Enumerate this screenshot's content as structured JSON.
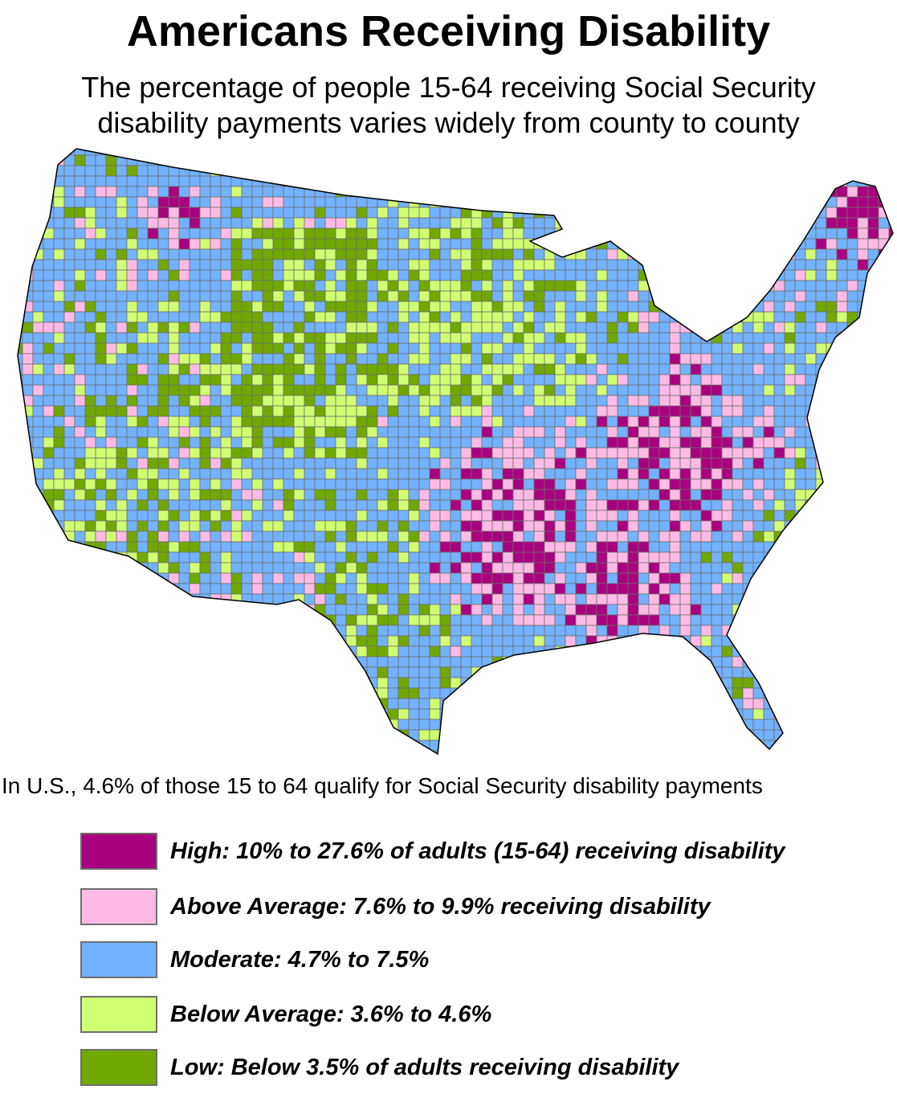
{
  "title": "Americans Receiving Disability",
  "subtitle_line1": "The percentage of people 15-64 receiving Social Security",
  "subtitle_line2": "disability payments varies widely from county to county",
  "note": "In U.S., 4.6% of those 15 to 64 qualify for Social Security disability payments",
  "legend": [
    {
      "label": "High: 10% to 27.6% of adults (15-64) receiving disability",
      "color": "#A8007F"
    },
    {
      "label": "Above Average: 7.6% to 9.9% receiving disability",
      "color": "#FFBBE5"
    },
    {
      "label": "Moderate: 4.7% to 7.5%",
      "color": "#73B2FF"
    },
    {
      "label": "Below Average: 3.6% to 4.6%",
      "color": "#D1FF73"
    },
    {
      "label": "Low: Below 3.5% of adults receiving disability",
      "color": "#70A800"
    }
  ],
  "boundary_color": "#6E6E6E"
}
